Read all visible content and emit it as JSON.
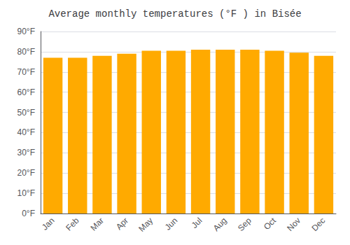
{
  "chart_data": {
    "type": "bar",
    "title": "Average monthly temperatures (°F ) in Bisée",
    "categories": [
      "Jan",
      "Feb",
      "Mar",
      "Apr",
      "May",
      "Jun",
      "Jul",
      "Aug",
      "Sep",
      "Oct",
      "Nov",
      "Dec"
    ],
    "values": [
      77.0,
      77.0,
      78.0,
      79.0,
      80.5,
      80.5,
      81.0,
      81.0,
      81.0,
      80.5,
      79.5,
      78.0
    ],
    "color": "#FFAA00",
    "ylim": [
      0,
      90
    ],
    "yticks": [
      {
        "value": 0,
        "label": "0°F"
      },
      {
        "value": 10,
        "label": "10°F"
      },
      {
        "value": 20,
        "label": "20°F"
      },
      {
        "value": 30,
        "label": "30°F"
      },
      {
        "value": 40,
        "label": "40°F"
      },
      {
        "value": 50,
        "label": "50°F"
      },
      {
        "value": 60,
        "label": "60°F"
      },
      {
        "value": 70,
        "label": "70°F"
      },
      {
        "value": 80,
        "label": "80°F"
      },
      {
        "value": 90,
        "label": "90°F"
      }
    ],
    "grid": true
  }
}
